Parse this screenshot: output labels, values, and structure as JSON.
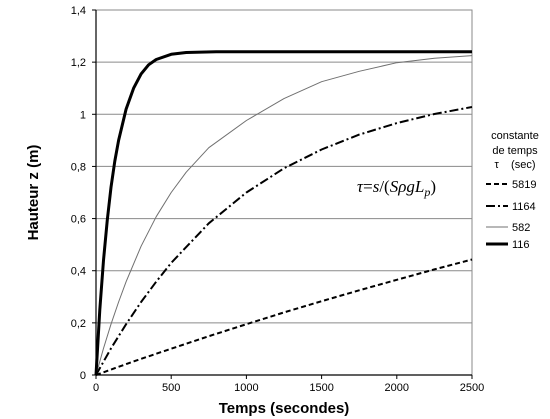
{
  "chart_data": {
    "type": "line",
    "xlabel": "Temps  (secondes)",
    "ylabel": "Hauteur  z  (m)",
    "xlim": [
      0,
      2500
    ],
    "ylim": [
      0,
      1.4
    ],
    "x_ticks": [
      "0",
      "500",
      "1000",
      "1500",
      "2000",
      "2500"
    ],
    "y_ticks": [
      "0",
      "0,2",
      "0,4",
      "0,6",
      "0,8",
      "1",
      "1,2",
      "1,4"
    ],
    "grid": "horizontal",
    "annotation": {
      "parts": [
        "τ",
        "=",
        "s",
        "/(",
        "SρgL",
        "p",
        ")"
      ]
    },
    "legend": {
      "title_lines": [
        "constante",
        "de temps",
        "τ    (sec)"
      ],
      "placement": "right"
    },
    "series": [
      {
        "name": "5819",
        "style": "dashed",
        "color": "#000000",
        "x": [
          0,
          250,
          500,
          750,
          1000,
          1250,
          1500,
          1750,
          2000,
          2250,
          2500
        ],
        "y": [
          0,
          0.052,
          0.101,
          0.149,
          0.195,
          0.24,
          0.283,
          0.325,
          0.365,
          0.405,
          0.443
        ]
      },
      {
        "name": "1164",
        "style": "dash-dot",
        "color": "#000000",
        "x": [
          0,
          100,
          200,
          300,
          400,
          500,
          750,
          1000,
          1250,
          1500,
          1750,
          2000,
          2250,
          2500
        ],
        "y": [
          0,
          0.102,
          0.195,
          0.28,
          0.358,
          0.43,
          0.582,
          0.7,
          0.793,
          0.865,
          0.922,
          0.966,
          1.001,
          1.028
        ]
      },
      {
        "name": "582",
        "style": "solid-thin",
        "color": "#707070",
        "x": [
          0,
          50,
          100,
          150,
          200,
          300,
          400,
          500,
          600,
          750,
          1000,
          1250,
          1500,
          1750,
          2000,
          2250,
          2500
        ],
        "y": [
          0,
          0.102,
          0.195,
          0.28,
          0.358,
          0.494,
          0.607,
          0.7,
          0.778,
          0.872,
          0.976,
          1.06,
          1.125,
          1.165,
          1.198,
          1.215,
          1.225
        ]
      },
      {
        "name": "116",
        "style": "solid-thick",
        "color": "#000000",
        "x": [
          0,
          25,
          50,
          75,
          100,
          125,
          150,
          200,
          250,
          300,
          350,
          400,
          500,
          600,
          800,
          1000,
          1500,
          2000,
          2500
        ],
        "y": [
          0,
          0.25,
          0.44,
          0.595,
          0.72,
          0.82,
          0.9,
          1.02,
          1.1,
          1.155,
          1.19,
          1.21,
          1.23,
          1.237,
          1.24,
          1.24,
          1.24,
          1.24,
          1.24
        ]
      }
    ]
  }
}
